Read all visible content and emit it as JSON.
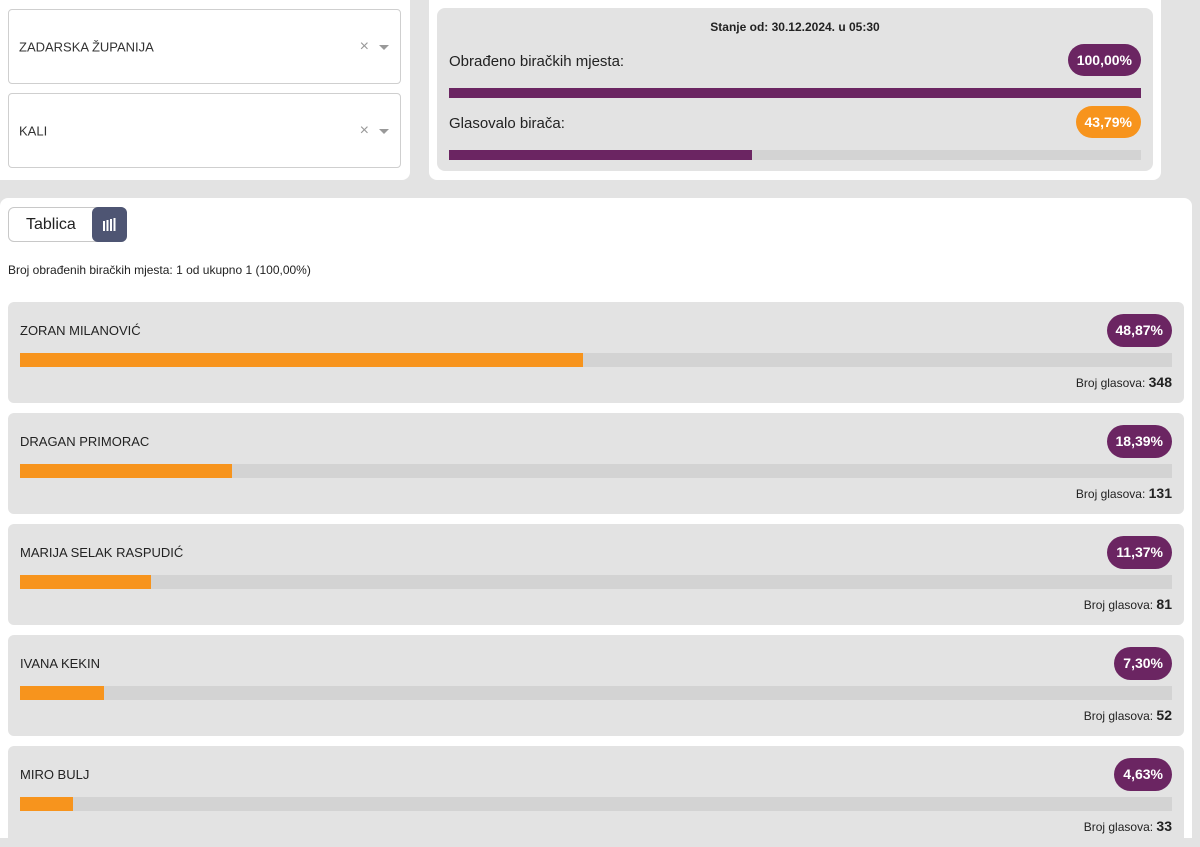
{
  "filters": {
    "county": {
      "value": "ZADARSKA ŽUPANIJA"
    },
    "municipality": {
      "value": "KALI"
    },
    "clear_icon": "×"
  },
  "stats": {
    "date_label": "Stanje od: 30.12.2024. u 05:30",
    "processed_label": "Obrađeno biračkih mjesta:",
    "processed_value": "100,00%",
    "processed_fraction": 1.0,
    "turnout_label": "Glasovalo birača:",
    "turnout_value": "43,79%",
    "turnout_fraction": 0.4379
  },
  "view_toggle": {
    "label": "Tablica",
    "chart_icon": "bar-chart-icon"
  },
  "processed_info": "Broj obrađenih biračkih mjesta: 1 od ukupno 1 (100,00%)",
  "votes_label": "Broj glasova:",
  "candidates": [
    {
      "name": "ZORAN MILANOVIĆ",
      "percent_label": "48,87%",
      "percent": 48.87,
      "votes": "348"
    },
    {
      "name": "DRAGAN PRIMORAC",
      "percent_label": "18,39%",
      "percent": 18.39,
      "votes": "131"
    },
    {
      "name": "MARIJA SELAK RASPUDIĆ",
      "percent_label": "11,37%",
      "percent": 11.37,
      "votes": "81"
    },
    {
      "name": "IVANA KEKIN",
      "percent_label": "7,30%",
      "percent": 7.3,
      "votes": "52"
    },
    {
      "name": "MIRO BULJ",
      "percent_label": "4,63%",
      "percent": 4.63,
      "votes": "33"
    }
  ],
  "colors": {
    "purple": "#6b2562",
    "orange": "#f7941d",
    "toggle_dark": "#4e5573"
  }
}
